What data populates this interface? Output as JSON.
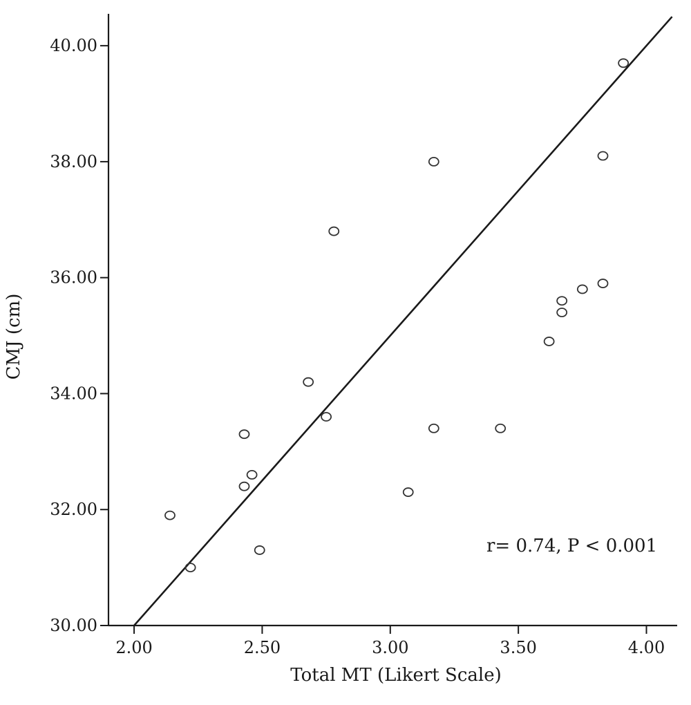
{
  "chart_data": {
    "type": "scatter",
    "xlabel": "Total MT (Likert Scale)",
    "ylabel": "CMJ (cm)",
    "xlim": [
      1.9,
      4.12
    ],
    "ylim": [
      30.0,
      40.55
    ],
    "xticks": [
      2.0,
      2.5,
      3.0,
      3.5,
      4.0
    ],
    "xtick_labels": [
      "2.00",
      "2.50",
      "3.00",
      "3.50",
      "4.00"
    ],
    "yticks": [
      30.0,
      32.0,
      34.0,
      36.0,
      38.0,
      40.0
    ],
    "ytick_labels": [
      "30.00",
      "32.00",
      "34.00",
      "36.00",
      "38.00",
      "40.00"
    ],
    "grid": false,
    "points": [
      {
        "x": 2.14,
        "y": 31.9
      },
      {
        "x": 2.22,
        "y": 31.0
      },
      {
        "x": 2.43,
        "y": 32.4
      },
      {
        "x": 2.43,
        "y": 33.3
      },
      {
        "x": 2.46,
        "y": 32.6
      },
      {
        "x": 2.49,
        "y": 31.3
      },
      {
        "x": 2.68,
        "y": 34.2
      },
      {
        "x": 2.75,
        "y": 33.6
      },
      {
        "x": 2.78,
        "y": 36.8
      },
      {
        "x": 3.07,
        "y": 32.3
      },
      {
        "x": 3.17,
        "y": 33.4
      },
      {
        "x": 3.17,
        "y": 38.0
      },
      {
        "x": 3.43,
        "y": 33.4
      },
      {
        "x": 3.62,
        "y": 34.9
      },
      {
        "x": 3.67,
        "y": 35.4
      },
      {
        "x": 3.67,
        "y": 35.6
      },
      {
        "x": 3.75,
        "y": 35.8
      },
      {
        "x": 3.83,
        "y": 35.9
      },
      {
        "x": 3.83,
        "y": 38.1
      },
      {
        "x": 3.91,
        "y": 39.7
      }
    ],
    "fit_line": {
      "x": [
        2.0,
        4.1
      ],
      "y": [
        30.0,
        40.5
      ]
    },
    "annotation": "r= 0.74, P < 0.001"
  }
}
